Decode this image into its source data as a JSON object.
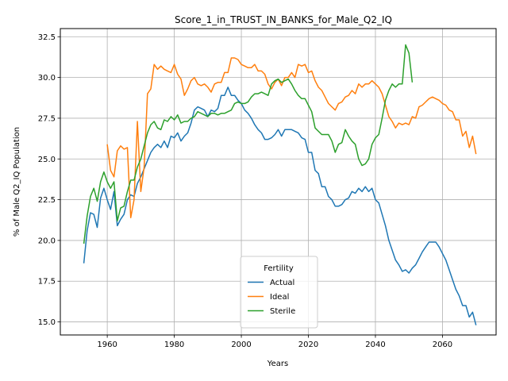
{
  "chart_data": {
    "type": "line",
    "title": "Score_1_in_TRUST_IN_BANKS_for_Male_Q2_IQ",
    "xlabel": "Years",
    "ylabel": "% of Male Q2_IQ Population",
    "xlim": [
      1946,
      2076
    ],
    "ylim": [
      14.2,
      33.0
    ],
    "xticks": [
      1960,
      1980,
      2000,
      2020,
      2040,
      2060
    ],
    "yticks": [
      15.0,
      17.5,
      20.0,
      22.5,
      25.0,
      27.5,
      30.0,
      32.5
    ],
    "ytick_labels": [
      "15.0",
      "17.5",
      "20.0",
      "22.5",
      "25.0",
      "27.5",
      "30.0",
      "32.5"
    ],
    "grid": true,
    "legend": {
      "title": "Fertility",
      "position": "lower center"
    },
    "series": [
      {
        "name": "Actual",
        "color": "#1f77b4",
        "x": [
          1953,
          1954,
          1955,
          1956,
          1957,
          1958,
          1959,
          1960,
          1961,
          1962,
          1963,
          1964,
          1965,
          1966,
          1967,
          1968,
          1969,
          1970,
          1971,
          1972,
          1973,
          1974,
          1975,
          1976,
          1977,
          1978,
          1979,
          1980,
          1981,
          1982,
          1983,
          1984,
          1985,
          1986,
          1987,
          1988,
          1989,
          1990,
          1991,
          1992,
          1993,
          1994,
          1995,
          1996,
          1997,
          1998,
          1999,
          2000,
          2001,
          2002,
          2003,
          2004,
          2005,
          2006,
          2007,
          2008,
          2009,
          2010,
          2011,
          2012,
          2013,
          2014,
          2015,
          2016,
          2017,
          2018,
          2019,
          2020,
          2021,
          2022,
          2023,
          2024,
          2025,
          2026,
          2027,
          2028,
          2029,
          2030,
          2031,
          2032,
          2033,
          2034,
          2035,
          2036,
          2037,
          2038,
          2039,
          2040,
          2041,
          2042,
          2043,
          2044,
          2045,
          2046,
          2047,
          2048,
          2049,
          2050,
          2051,
          2052,
          2053,
          2054,
          2055,
          2056,
          2057,
          2058,
          2059,
          2060,
          2061,
          2062,
          2063,
          2064,
          2065,
          2066,
          2067,
          2068,
          2069,
          2070
        ],
        "y": [
          18.6,
          20.6,
          21.7,
          21.6,
          20.8,
          22.6,
          23.2,
          22.5,
          21.9,
          23.0,
          20.9,
          21.3,
          21.6,
          22.5,
          22.8,
          22.7,
          23.5,
          23.9,
          24.4,
          24.9,
          25.4,
          25.7,
          25.9,
          25.7,
          26.1,
          25.7,
          26.4,
          26.3,
          26.6,
          26.1,
          26.4,
          26.6,
          27.2,
          28.0,
          28.2,
          28.1,
          28.0,
          27.6,
          28.0,
          27.9,
          28.1,
          28.9,
          28.9,
          29.4,
          28.9,
          28.9,
          28.6,
          28.4,
          28.0,
          27.8,
          27.5,
          27.1,
          26.8,
          26.6,
          26.2,
          26.2,
          26.3,
          26.5,
          26.8,
          26.4,
          26.8,
          26.8,
          26.8,
          26.7,
          26.6,
          26.3,
          26.2,
          25.4,
          25.4,
          24.3,
          24.1,
          23.3,
          23.3,
          22.7,
          22.5,
          22.1,
          22.1,
          22.2,
          22.5,
          22.6,
          23.0,
          22.9,
          23.2,
          23.0,
          23.3,
          23.0,
          23.2,
          22.5,
          22.3,
          21.6,
          20.9,
          20.0,
          19.4,
          18.8,
          18.5,
          18.1,
          18.2,
          18.0,
          18.3,
          18.5,
          18.9,
          19.3,
          19.6,
          19.9,
          19.9,
          19.9,
          19.6,
          19.2,
          18.8,
          18.2,
          17.6,
          17.0,
          16.6,
          16.0,
          16.0,
          15.3,
          15.6,
          14.8
        ]
      },
      {
        "name": "Ideal",
        "color": "#ff7f0e",
        "x": [
          1960,
          1961,
          1962,
          1963,
          1964,
          1965,
          1966,
          1967,
          1968,
          1969,
          1970,
          1971,
          1972,
          1973,
          1974,
          1975,
          1976,
          1977,
          1978,
          1979,
          1980,
          1981,
          1982,
          1983,
          1984,
          1985,
          1986,
          1987,
          1988,
          1989,
          1990,
          1991,
          1992,
          1993,
          1994,
          1995,
          1996,
          1997,
          1998,
          1999,
          2000,
          2001,
          2002,
          2003,
          2004,
          2005,
          2006,
          2007,
          2008,
          2009,
          2010,
          2011,
          2012,
          2013,
          2014,
          2015,
          2016,
          2017,
          2018,
          2019,
          2020,
          2021,
          2022,
          2023,
          2024,
          2025,
          2026,
          2027,
          2028,
          2029,
          2030,
          2031,
          2032,
          2033,
          2034,
          2035,
          2036,
          2037,
          2038,
          2039,
          2040,
          2041,
          2042,
          2043,
          2044,
          2045,
          2046,
          2047,
          2048,
          2049,
          2050,
          2051,
          2052,
          2053,
          2054,
          2055,
          2056,
          2057,
          2058,
          2059,
          2060,
          2061,
          2062,
          2063,
          2064,
          2065,
          2066,
          2067,
          2068,
          2069,
          2070
        ],
        "y": [
          25.9,
          24.3,
          23.9,
          25.5,
          25.8,
          25.6,
          25.7,
          21.4,
          22.5,
          27.3,
          23.0,
          24.5,
          29.0,
          29.3,
          30.8,
          30.5,
          30.7,
          30.5,
          30.4,
          30.3,
          30.8,
          30.2,
          29.9,
          28.9,
          29.3,
          29.8,
          30.0,
          29.6,
          29.5,
          29.6,
          29.4,
          29.1,
          29.6,
          29.7,
          29.7,
          30.3,
          30.3,
          31.2,
          31.2,
          31.1,
          30.8,
          30.7,
          30.6,
          30.6,
          30.8,
          30.4,
          30.4,
          30.2,
          29.6,
          29.3,
          29.7,
          29.9,
          29.5,
          30.0,
          30.0,
          30.3,
          30.0,
          30.8,
          30.7,
          30.8,
          30.3,
          30.4,
          29.8,
          29.4,
          29.2,
          28.8,
          28.4,
          28.2,
          28.0,
          28.4,
          28.5,
          28.8,
          28.9,
          29.2,
          29.0,
          29.6,
          29.4,
          29.6,
          29.6,
          29.8,
          29.6,
          29.4,
          29.0,
          28.3,
          27.6,
          27.3,
          26.9,
          27.2,
          27.1,
          27.2,
          27.1,
          27.6,
          27.5,
          28.2,
          28.3,
          28.5,
          28.7,
          28.8,
          28.7,
          28.6,
          28.4,
          28.3,
          28.0,
          27.9,
          27.4,
          27.4,
          26.4,
          26.7,
          25.7,
          26.4,
          25.3
        ]
      },
      {
        "name": "Sterile",
        "color": "#2ca02c",
        "x": [
          1953,
          1954,
          1955,
          1956,
          1957,
          1958,
          1959,
          1960,
          1961,
          1962,
          1963,
          1964,
          1965,
          1966,
          1967,
          1968,
          1969,
          1970,
          1971,
          1972,
          1973,
          1974,
          1975,
          1976,
          1977,
          1978,
          1979,
          1980,
          1981,
          1982,
          1983,
          1984,
          1985,
          1986,
          1987,
          1988,
          1989,
          1990,
          1991,
          1992,
          1993,
          1994,
          1995,
          1996,
          1997,
          1998,
          1999,
          2000,
          2001,
          2002,
          2003,
          2004,
          2005,
          2006,
          2007,
          2008,
          2009,
          2010,
          2011,
          2012,
          2013,
          2014,
          2015,
          2016,
          2017,
          2018,
          2019,
          2020,
          2021,
          2022,
          2023,
          2024,
          2025,
          2026,
          2027,
          2028,
          2029,
          2030,
          2031,
          2032,
          2033,
          2034,
          2035,
          2036,
          2037,
          2038,
          2039,
          2040,
          2041,
          2042,
          2043,
          2044,
          2045,
          2046,
          2047,
          2048,
          2049,
          2050,
          2051
        ],
        "y": [
          19.8,
          21.5,
          22.7,
          23.2,
          22.4,
          23.6,
          24.2,
          23.6,
          23.2,
          23.6,
          21.2,
          22.0,
          22.1,
          23.0,
          23.7,
          23.7,
          24.5,
          25.0,
          25.8,
          26.6,
          27.1,
          27.3,
          26.9,
          26.8,
          27.4,
          27.3,
          27.6,
          27.4,
          27.7,
          27.2,
          27.3,
          27.3,
          27.5,
          27.6,
          27.9,
          27.8,
          27.7,
          27.6,
          27.8,
          27.8,
          27.7,
          27.8,
          27.8,
          27.9,
          28.0,
          28.4,
          28.5,
          28.4,
          28.4,
          28.5,
          28.8,
          29.0,
          29.0,
          29.1,
          29.0,
          28.9,
          29.6,
          29.8,
          29.9,
          29.7,
          29.8,
          29.9,
          29.6,
          29.2,
          28.9,
          28.7,
          28.7,
          28.3,
          27.9,
          26.9,
          26.7,
          26.5,
          26.5,
          26.5,
          26.1,
          25.4,
          25.9,
          26.0,
          26.8,
          26.4,
          26.1,
          25.9,
          25.0,
          24.6,
          24.7,
          25.0,
          25.9,
          26.3,
          26.5,
          27.5,
          28.6,
          29.2,
          29.6,
          29.4,
          29.6,
          29.6,
          32.0,
          31.5,
          29.7
        ]
      }
    ]
  }
}
